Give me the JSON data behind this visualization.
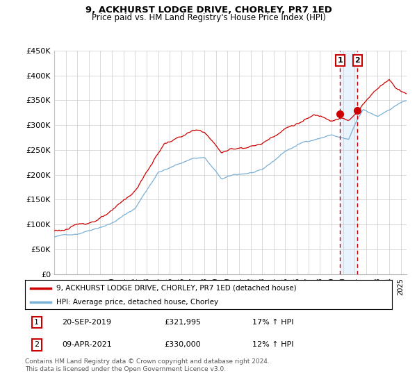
{
  "title": "9, ACKHURST LODGE DRIVE, CHORLEY, PR7 1ED",
  "subtitle": "Price paid vs. HM Land Registry's House Price Index (HPI)",
  "ylabel_ticks": [
    "£0",
    "£50K",
    "£100K",
    "£150K",
    "£200K",
    "£250K",
    "£300K",
    "£350K",
    "£400K",
    "£450K"
  ],
  "ylim": [
    0,
    450000
  ],
  "xlim_start": 1995.0,
  "xlim_end": 2025.5,
  "legend_line1": "9, ACKHURST LODGE DRIVE, CHORLEY, PR7 1ED (detached house)",
  "legend_line2": "HPI: Average price, detached house, Chorley",
  "annotation1_date": "20-SEP-2019",
  "annotation1_price": "£321,995",
  "annotation1_hpi": "17% ↑ HPI",
  "annotation2_date": "09-APR-2021",
  "annotation2_price": "£330,000",
  "annotation2_hpi": "12% ↑ HPI",
  "footer": "Contains HM Land Registry data © Crown copyright and database right 2024.\nThis data is licensed under the Open Government Licence v3.0.",
  "line_color_red": "#CC0000",
  "line_color_blue": "#7AAFD4",
  "vline_color": "#CC0000",
  "shade_color": "#DDEEFF",
  "bg_color": "#FFFFFF",
  "grid_color": "#CCCCCC",
  "transaction1_x": 2019.75,
  "transaction2_x": 2021.25,
  "transaction1_y": 321995,
  "transaction2_y": 330000,
  "seed": 42
}
